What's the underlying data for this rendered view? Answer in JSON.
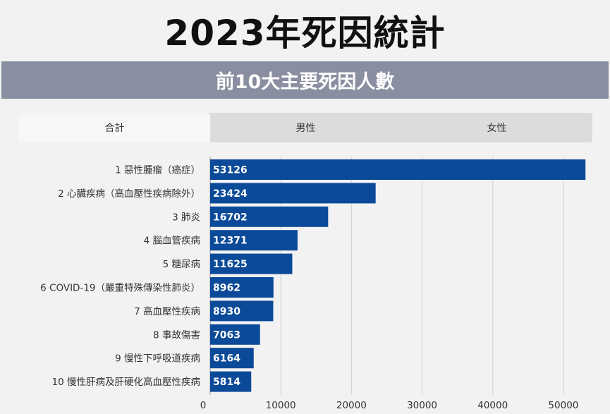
{
  "page": {
    "title": "2023年死因統計",
    "subtitle": "前10大主要死因人數"
  },
  "tabs": [
    {
      "label": "合計",
      "active": true
    },
    {
      "label": "男性",
      "active": false
    },
    {
      "label": "女性",
      "active": false
    }
  ],
  "colors": {
    "bar": "#0b4a98",
    "header_bar": "#8a8ea1",
    "grid": "#d0d0d0"
  },
  "chart_data": {
    "type": "bar",
    "orientation": "horizontal",
    "categories": [
      "1 惡性腫瘤（癌症）",
      "2 心臟疾病（高血壓性疾病除外）",
      "3 肺炎",
      "4 腦血管疾病",
      "5 糖尿病",
      "6 COVID-19（嚴重特殊傳染性肺炎）",
      "7 高血壓性疾病",
      "8 事故傷害",
      "9 慢性下呼吸道疾病",
      "10 慢性肝病及肝硬化高血壓性疾病"
    ],
    "values": [
      53126,
      23424,
      16702,
      12371,
      11625,
      8962,
      8930,
      7063,
      6164,
      5814
    ],
    "x_ticks": [
      0,
      10000,
      20000,
      30000,
      40000,
      50000
    ],
    "x_tick_labels": [
      "0",
      "10000",
      "20000",
      "30000",
      "40000",
      "50000"
    ],
    "xlim": [
      0,
      55000
    ],
    "grid": true,
    "data_labels": true
  }
}
